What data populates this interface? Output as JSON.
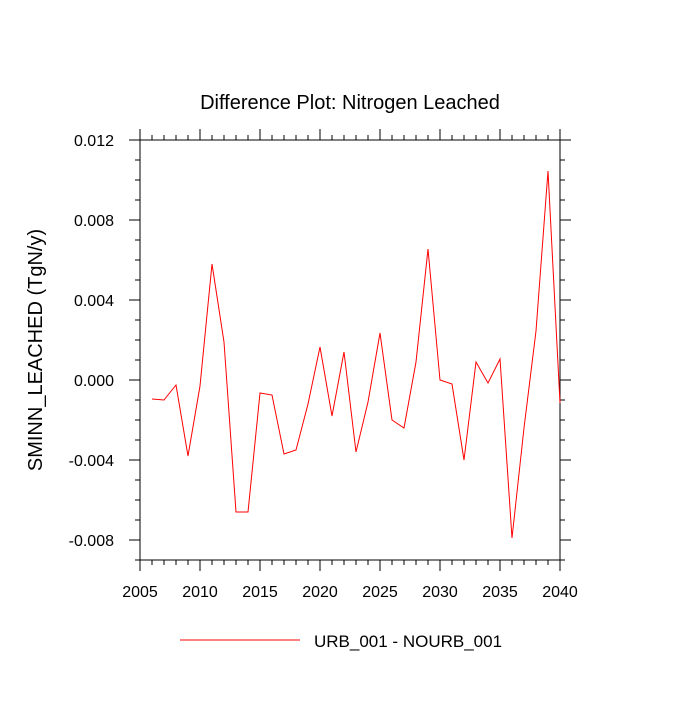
{
  "chart_data": {
    "type": "line",
    "title": "Difference Plot: Nitrogen Leached",
    "xlabel": "",
    "ylabel": "SMINN_LEACHED  (TgN/y)",
    "xlim": [
      2005,
      2040
    ],
    "ylim": [
      -0.009,
      0.012
    ],
    "x_ticks": [
      2005,
      2010,
      2015,
      2020,
      2025,
      2030,
      2035,
      2040
    ],
    "x_tick_labels": [
      "2005",
      "2010",
      "2015",
      "2020",
      "2025",
      "2030",
      "2035",
      "2040"
    ],
    "y_ticks": [
      -0.008,
      -0.004,
      0.0,
      0.004,
      0.008,
      0.012
    ],
    "y_tick_labels": [
      "-0.008",
      "-0.004",
      "0.000",
      "0.004",
      "0.008",
      "0.012"
    ],
    "grid": false,
    "legend_position": "bottom",
    "series": [
      {
        "name": "URB_001 - NOURB_001",
        "color": "#ff0000",
        "x": [
          2006,
          2007,
          2008,
          2009,
          2010,
          2011,
          2012,
          2013,
          2014,
          2015,
          2016,
          2017,
          2018,
          2019,
          2020,
          2021,
          2022,
          2023,
          2024,
          2025,
          2026,
          2027,
          2028,
          2029,
          2030,
          2031,
          2032,
          2033,
          2034,
          2035,
          2036,
          2037,
          2038,
          2039,
          2040
        ],
        "y": [
          -0.00095,
          -0.001,
          -0.00025,
          -0.0038,
          -0.0003,
          0.0058,
          0.0019,
          -0.0066,
          -0.0066,
          -0.00065,
          -0.00075,
          -0.0037,
          -0.0035,
          -0.0012,
          0.00165,
          -0.0018,
          0.0014,
          -0.0036,
          -0.0011,
          0.00235,
          -0.002,
          -0.0024,
          0.0009,
          0.00655,
          0.0,
          -0.0002,
          -0.004,
          0.0009,
          -0.00015,
          0.00105,
          -0.0079,
          -0.0024,
          0.00245,
          0.01045,
          -0.00115
        ]
      }
    ]
  }
}
